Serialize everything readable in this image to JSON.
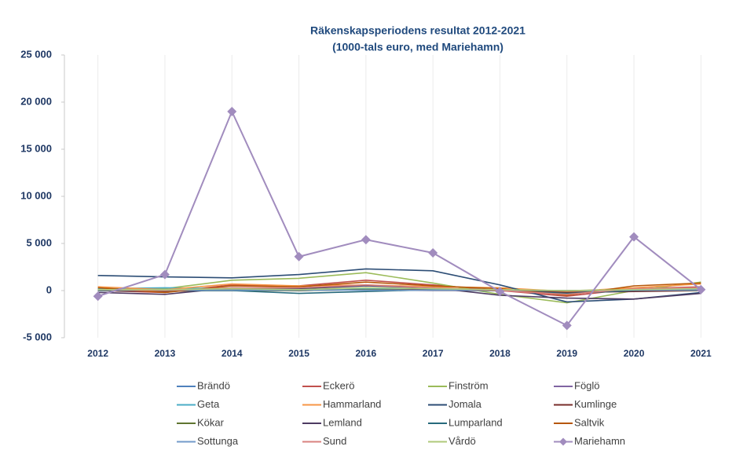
{
  "chart_data": {
    "type": "line",
    "title": "Räkenskapsperiodens resultat 2012-2021",
    "subtitle": "(1000-tals euro, med Mariehamn)",
    "categories": [
      "2012",
      "2013",
      "2014",
      "2015",
      "2016",
      "2017",
      "2018",
      "2019",
      "2020",
      "2021"
    ],
    "ylim": [
      -5000,
      25000
    ],
    "yticks": [
      {
        "value": -5000,
        "label": "-5 000"
      },
      0,
      {
        "value": 5000,
        "label": "5 000"
      },
      {
        "value": 10000,
        "label": "10 000"
      },
      {
        "value": 15000,
        "label": "15 000"
      },
      {
        "value": 20000,
        "label": "20 000"
      },
      {
        "value": 25000,
        "label": "25 000"
      }
    ],
    "legend": "bottom",
    "series": [
      {
        "name": "Brändö",
        "color": "#4f81bd",
        "values": [
          100,
          0,
          100,
          50,
          100,
          50,
          0,
          -100,
          0,
          100
        ]
      },
      {
        "name": "Eckerö",
        "color": "#c0504d",
        "values": [
          0,
          -200,
          600,
          500,
          1100,
          600,
          0,
          -600,
          200,
          400
        ]
      },
      {
        "name": "Finström",
        "color": "#9bbb59",
        "values": [
          200,
          200,
          1100,
          1300,
          1900,
          800,
          -400,
          -1300,
          0,
          900
        ]
      },
      {
        "name": "Föglö",
        "color": "#8064a2",
        "values": [
          0,
          0,
          0,
          0,
          100,
          0,
          0,
          -100,
          0,
          0
        ]
      },
      {
        "name": "Geta",
        "color": "#4bacc6",
        "values": [
          200,
          300,
          200,
          100,
          200,
          100,
          0,
          -200,
          100,
          200
        ]
      },
      {
        "name": "Hammarland",
        "color": "#f79646",
        "values": [
          400,
          100,
          700,
          500,
          600,
          400,
          300,
          -100,
          300,
          700
        ]
      },
      {
        "name": "Jomala",
        "color": "#2c4d75",
        "values": [
          1600,
          1450,
          1350,
          1700,
          2300,
          2100,
          600,
          -1200,
          -900,
          -200
        ]
      },
      {
        "name": "Kumlinge",
        "color": "#772c2a",
        "values": [
          0,
          -100,
          100,
          0,
          100,
          100,
          0,
          -200,
          -100,
          0
        ]
      },
      {
        "name": "Kökar",
        "color": "#5f7530",
        "values": [
          100,
          0,
          0,
          0,
          100,
          50,
          0,
          0,
          100,
          0
        ]
      },
      {
        "name": "Lemland",
        "color": "#4d3b62",
        "values": [
          -200,
          -400,
          300,
          200,
          500,
          300,
          -500,
          -800,
          -900,
          -300
        ]
      },
      {
        "name": "Lumparland",
        "color": "#276a7c",
        "values": [
          0,
          0,
          0,
          -300,
          -100,
          100,
          0,
          -300,
          0,
          100
        ]
      },
      {
        "name": "Saltvik",
        "color": "#b65708",
        "values": [
          300,
          -200,
          500,
          400,
          900,
          500,
          200,
          -500,
          500,
          800
        ]
      },
      {
        "name": "Sottunga",
        "color": "#729aca",
        "values": [
          50,
          50,
          50,
          50,
          50,
          50,
          50,
          0,
          50,
          50
        ]
      },
      {
        "name": "Sund",
        "color": "#d9827f",
        "values": [
          100,
          0,
          300,
          300,
          600,
          300,
          0,
          -400,
          200,
          300
        ]
      },
      {
        "name": "Vårdö",
        "color": "#afc97a",
        "values": [
          100,
          100,
          200,
          100,
          300,
          200,
          100,
          0,
          100,
          200
        ]
      },
      {
        "name": "Mariehamn",
        "color": "#a18cbe",
        "marker": "diamond",
        "values": [
          -600,
          1700,
          19000,
          3600,
          5400,
          4000,
          -100,
          -3700,
          5700,
          100
        ]
      }
    ]
  }
}
